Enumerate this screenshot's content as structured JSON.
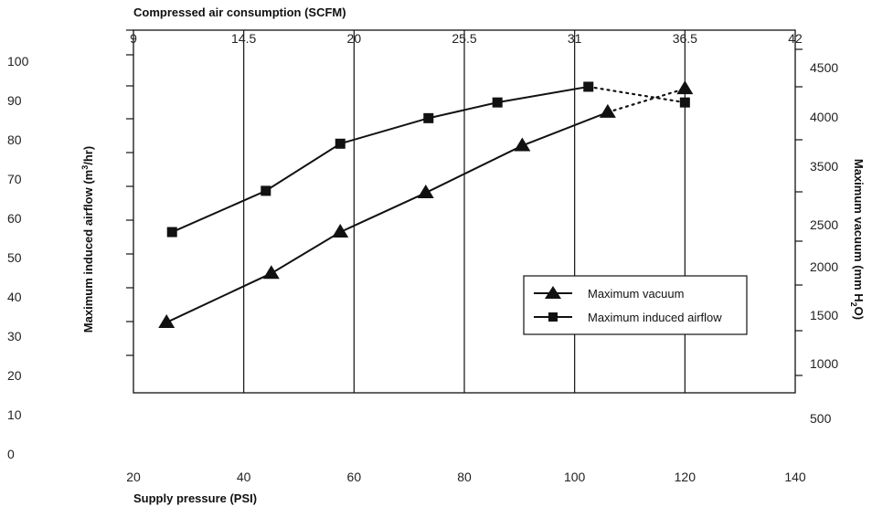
{
  "chart_data": {
    "type": "line",
    "top_axis": {
      "label": "Compressed air consumption (SCFM)",
      "range": [
        9,
        42
      ],
      "ticks": [
        "9",
        "14.5",
        "20",
        "25.5",
        "31",
        "36.5",
        "42"
      ]
    },
    "bottom_axis": {
      "label": "Supply pressure (PSI)",
      "range": [
        20,
        140
      ],
      "ticks": [
        "20",
        "40",
        "60",
        "80",
        "100",
        "120",
        "140"
      ]
    },
    "left_axis": {
      "label_main": "Maximum induced airflow (m",
      "label_sup": "3",
      "label_end": "/hr)",
      "range": [
        0,
        100
      ],
      "ticks": [
        "0",
        "10",
        "20",
        "30",
        "40",
        "50",
        "60",
        "70",
        "80",
        "90",
        "100"
      ]
    },
    "right_axis": {
      "label_main": "Maximum vacuum (mm H",
      "label_sub": "2",
      "label_end": "O)",
      "ticks": [
        "500",
        "1000",
        "1500",
        "2000",
        "2500",
        "3500",
        "4000",
        "4500"
      ]
    },
    "series": [
      {
        "name": "Maximum induced airflow",
        "marker": "square",
        "points": [
          [
            27,
            56.5
          ],
          [
            44,
            67
          ],
          [
            57.5,
            79
          ],
          [
            73.5,
            85.5
          ],
          [
            86,
            89.5
          ],
          [
            102.5,
            93.5
          ]
        ],
        "dotted_points": [
          [
            102.5,
            93.5
          ],
          [
            120,
            89.5
          ]
        ]
      },
      {
        "name": "Maximum vacuum",
        "marker": "triangle",
        "points": [
          [
            26,
            33.5
          ],
          [
            45,
            46
          ],
          [
            57.5,
            56.5
          ],
          [
            73,
            66.5
          ],
          [
            90.5,
            78.5
          ],
          [
            106,
            87
          ]
        ],
        "dotted_points": [
          [
            106,
            87
          ],
          [
            120,
            93
          ]
        ]
      }
    ],
    "legend": {
      "position": "inside-right",
      "entries": [
        {
          "label": "Maximum vacuum",
          "marker": "triangle"
        },
        {
          "label": "Maximum induced airflow",
          "marker": "square"
        }
      ]
    },
    "gridlines": "vertical",
    "colors": {
      "line": "#111111",
      "text": "#222222"
    }
  }
}
